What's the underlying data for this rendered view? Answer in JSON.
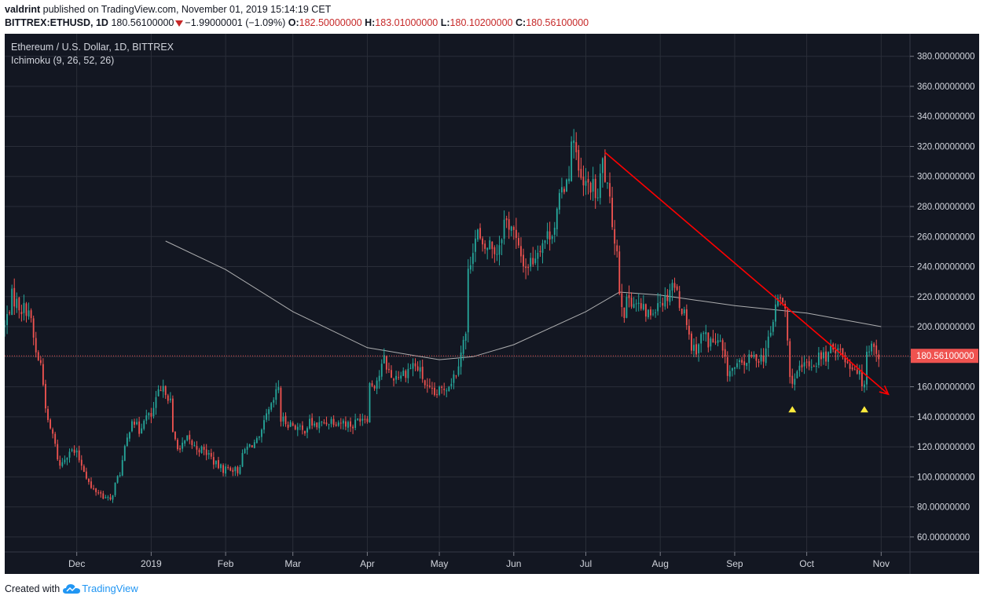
{
  "header": {
    "author": "valdrint",
    "published_text": " published on TradingView.com, November 01, 2019 15:14:19 CET",
    "symbol": "BITTREX:ETHUSD, 1D",
    "last": "180.56100000",
    "change": "−1.99000001 (−1.09%)",
    "o_label": "O:",
    "o_value": "182.50000000",
    "h_label": "H:",
    "h_value": "183.01000000",
    "l_label": "L:",
    "l_value": "180.10200000",
    "c_label": "C:",
    "c_value": "180.56100000"
  },
  "legend": {
    "title": "Ethereum / U.S. Dollar, 1D, BITTREX",
    "indicator": "Ichimoku (9, 26, 52, 26)"
  },
  "footer": {
    "created_with": "Created with",
    "brand": "TradingView"
  },
  "colors": {
    "background": "#131722",
    "grid": "#2a2e39",
    "up": "#26a69a",
    "down": "#ef5350",
    "trendline": "#ff0000",
    "ma_line": "#c8c8c8",
    "marker": "#ffeb3b",
    "price_line": "#ef5350",
    "price_badge": "#ef5350"
  },
  "chart_data": {
    "type": "candlestick",
    "title": "Ethereum / U.S. Dollar, 1D, BITTREX",
    "ylim": [
      50,
      395
    ],
    "xlim": [
      "2018-11-01",
      "2019-11-13"
    ],
    "y_ticks": [
      60,
      80,
      100,
      120,
      140,
      160,
      180,
      200,
      220,
      240,
      260,
      280,
      300,
      320,
      340,
      360,
      380
    ],
    "y_tick_labels": [
      "60.00000000",
      "80.00000000",
      "100.00000000",
      "120.00000000",
      "140.00000000",
      "160.00000000",
      "180.00000000",
      "200.00000000",
      "220.00000000",
      "240.00000000",
      "260.00000000",
      "280.00000000",
      "300.00000000",
      "320.00000000",
      "340.00000000",
      "360.00000000",
      "380.00000000"
    ],
    "x_ticks": [
      {
        "date": "2018-12-01",
        "label": "Dec"
      },
      {
        "date": "2019-01-01",
        "label": "2019"
      },
      {
        "date": "2019-02-01",
        "label": "Feb"
      },
      {
        "date": "2019-03-01",
        "label": "Mar"
      },
      {
        "date": "2019-04-01",
        "label": "Apr"
      },
      {
        "date": "2019-05-01",
        "label": "May"
      },
      {
        "date": "2019-06-01",
        "label": "Jun"
      },
      {
        "date": "2019-07-01",
        "label": "Jul"
      },
      {
        "date": "2019-08-01",
        "label": "Aug"
      },
      {
        "date": "2019-09-01",
        "label": "Sep"
      },
      {
        "date": "2019-10-01",
        "label": "Oct"
      },
      {
        "date": "2019-11-01",
        "label": "Nov"
      }
    ],
    "last_price": 180.561,
    "last_price_label": "180.56100000",
    "price_path": [
      [
        "2018-11-01",
        200
      ],
      [
        "2018-11-04",
        220
      ],
      [
        "2018-11-08",
        212
      ],
      [
        "2018-11-11",
        212
      ],
      [
        "2018-11-14",
        182
      ],
      [
        "2018-11-16",
        175
      ],
      [
        "2018-11-19",
        135
      ],
      [
        "2018-11-21",
        128
      ],
      [
        "2018-11-23",
        113
      ],
      [
        "2018-11-24",
        107
      ],
      [
        "2018-11-26",
        113
      ],
      [
        "2018-11-28",
        118
      ],
      [
        "2018-12-01",
        115
      ],
      [
        "2018-12-04",
        105
      ],
      [
        "2018-12-07",
        92
      ],
      [
        "2018-12-10",
        90
      ],
      [
        "2018-12-13",
        86
      ],
      [
        "2018-12-15",
        84
      ],
      [
        "2018-12-17",
        95
      ],
      [
        "2018-12-19",
        103
      ],
      [
        "2018-12-22",
        125
      ],
      [
        "2018-12-24",
        140
      ],
      [
        "2018-12-27",
        130
      ],
      [
        "2018-12-29",
        140
      ],
      [
        "2019-01-01",
        140
      ],
      [
        "2019-01-04",
        155
      ],
      [
        "2019-01-07",
        158
      ],
      [
        "2019-01-09",
        150
      ],
      [
        "2019-01-10",
        128
      ],
      [
        "2019-01-13",
        118
      ],
      [
        "2019-01-16",
        125
      ],
      [
        "2019-01-19",
        120
      ],
      [
        "2019-01-22",
        118
      ],
      [
        "2019-01-25",
        115
      ],
      [
        "2019-01-28",
        108
      ],
      [
        "2019-01-31",
        105
      ],
      [
        "2019-02-03",
        106
      ],
      [
        "2019-02-06",
        104
      ],
      [
        "2019-02-09",
        118
      ],
      [
        "2019-02-12",
        122
      ],
      [
        "2019-02-15",
        124
      ],
      [
        "2019-02-18",
        140
      ],
      [
        "2019-02-20",
        146
      ],
      [
        "2019-02-23",
        160
      ],
      [
        "2019-02-24",
        138
      ],
      [
        "2019-02-27",
        136
      ],
      [
        "2019-03-02",
        134
      ],
      [
        "2019-03-05",
        130
      ],
      [
        "2019-03-08",
        136
      ],
      [
        "2019-03-11",
        134
      ],
      [
        "2019-03-14",
        136
      ],
      [
        "2019-03-17",
        138
      ],
      [
        "2019-03-20",
        137
      ],
      [
        "2019-03-23",
        136
      ],
      [
        "2019-03-26",
        134
      ],
      [
        "2019-03-29",
        140
      ],
      [
        "2019-04-01",
        140
      ],
      [
        "2019-04-02",
        162
      ],
      [
        "2019-04-04",
        162
      ],
      [
        "2019-04-06",
        168
      ],
      [
        "2019-04-08",
        178
      ],
      [
        "2019-04-11",
        166
      ],
      [
        "2019-04-14",
        168
      ],
      [
        "2019-04-17",
        170
      ],
      [
        "2019-04-20",
        175
      ],
      [
        "2019-04-23",
        170
      ],
      [
        "2019-04-26",
        158
      ],
      [
        "2019-04-29",
        154
      ],
      [
        "2019-05-02",
        158
      ],
      [
        "2019-05-05",
        162
      ],
      [
        "2019-05-08",
        170
      ],
      [
        "2019-05-10",
        185
      ],
      [
        "2019-05-12",
        195
      ],
      [
        "2019-05-13",
        235
      ],
      [
        "2019-05-15",
        255
      ],
      [
        "2019-05-17",
        262
      ],
      [
        "2019-05-19",
        250
      ],
      [
        "2019-05-22",
        255
      ],
      [
        "2019-05-25",
        250
      ],
      [
        "2019-05-28",
        270
      ],
      [
        "2019-05-31",
        268
      ],
      [
        "2019-06-03",
        250
      ],
      [
        "2019-06-06",
        240
      ],
      [
        "2019-06-09",
        245
      ],
      [
        "2019-06-12",
        255
      ],
      [
        "2019-06-15",
        260
      ],
      [
        "2019-06-18",
        268
      ],
      [
        "2019-06-21",
        290
      ],
      [
        "2019-06-24",
        305
      ],
      [
        "2019-06-26",
        330
      ],
      [
        "2019-06-28",
        300
      ],
      [
        "2019-06-30",
        292
      ],
      [
        "2019-07-03",
        295
      ],
      [
        "2019-07-06",
        285
      ],
      [
        "2019-07-08",
        310
      ],
      [
        "2019-07-10",
        290
      ],
      [
        "2019-07-12",
        270
      ],
      [
        "2019-07-14",
        250
      ],
      [
        "2019-07-15",
        225
      ],
      [
        "2019-07-17",
        210
      ],
      [
        "2019-07-19",
        220
      ],
      [
        "2019-07-22",
        215
      ],
      [
        "2019-07-25",
        210
      ],
      [
        "2019-07-28",
        208
      ],
      [
        "2019-07-31",
        218
      ],
      [
        "2019-08-03",
        218
      ],
      [
        "2019-08-06",
        230
      ],
      [
        "2019-08-08",
        222
      ],
      [
        "2019-08-10",
        212
      ],
      [
        "2019-08-12",
        205
      ],
      [
        "2019-08-14",
        186
      ],
      [
        "2019-08-16",
        186
      ],
      [
        "2019-08-19",
        196
      ],
      [
        "2019-08-21",
        190
      ],
      [
        "2019-08-23",
        190
      ],
      [
        "2019-08-26",
        188
      ],
      [
        "2019-08-29",
        170
      ],
      [
        "2019-09-01",
        172
      ],
      [
        "2019-09-04",
        175
      ],
      [
        "2019-09-07",
        178
      ],
      [
        "2019-09-10",
        180
      ],
      [
        "2019-09-13",
        180
      ],
      [
        "2019-09-16",
        195
      ],
      [
        "2019-09-18",
        215
      ],
      [
        "2019-09-20",
        218
      ],
      [
        "2019-09-22",
        212
      ],
      [
        "2019-09-24",
        165
      ],
      [
        "2019-09-26",
        166
      ],
      [
        "2019-09-28",
        170
      ],
      [
        "2019-10-01",
        175
      ],
      [
        "2019-10-04",
        175
      ],
      [
        "2019-10-06",
        180
      ],
      [
        "2019-10-09",
        180
      ],
      [
        "2019-10-12",
        185
      ],
      [
        "2019-10-14",
        188
      ],
      [
        "2019-10-16",
        180
      ],
      [
        "2019-10-19",
        175
      ],
      [
        "2019-10-22",
        172
      ],
      [
        "2019-10-24",
        162
      ],
      [
        "2019-10-25",
        165
      ],
      [
        "2019-10-26",
        185
      ],
      [
        "2019-10-28",
        188
      ],
      [
        "2019-10-30",
        185
      ],
      [
        "2019-10-31",
        181
      ]
    ],
    "ma_line": [
      [
        "2019-01-07",
        257
      ],
      [
        "2019-02-01",
        238
      ],
      [
        "2019-03-01",
        210
      ],
      [
        "2019-04-01",
        186
      ],
      [
        "2019-05-01",
        178
      ],
      [
        "2019-05-15",
        180
      ],
      [
        "2019-06-01",
        188
      ],
      [
        "2019-07-01",
        210
      ],
      [
        "2019-07-15",
        223
      ],
      [
        "2019-08-01",
        221
      ],
      [
        "2019-09-01",
        214
      ],
      [
        "2019-10-01",
        209
      ],
      [
        "2019-11-01",
        200
      ]
    ],
    "trendline": {
      "start": [
        "2019-07-09",
        316
      ],
      "end": [
        "2019-11-04",
        155
      ]
    },
    "markers": [
      {
        "date": "2019-09-25",
        "value": 145
      },
      {
        "date": "2019-10-25",
        "value": 145
      }
    ]
  }
}
